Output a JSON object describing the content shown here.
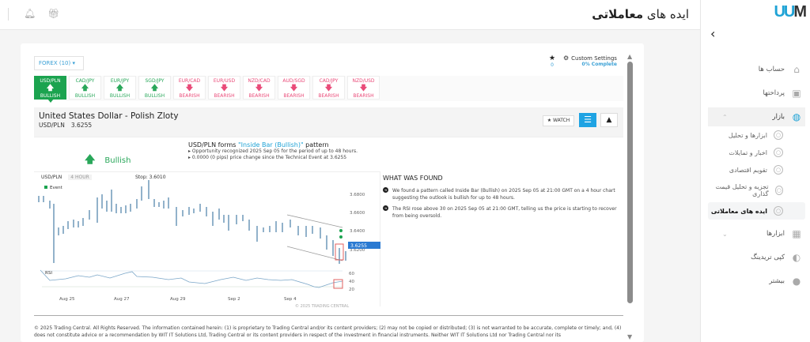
{
  "header": {
    "title_prefix": "ایده های",
    "title_bold": "معاملاتی",
    "icons": [
      "bell-icon",
      "gift-icon"
    ]
  },
  "sidebar": {
    "logo_u": "W",
    "logo_m": "M",
    "items": [
      {
        "label": "حساب ها",
        "icon": "home-icon"
      },
      {
        "label": "پرداختها",
        "icon": "wallet-icon"
      },
      {
        "label": "بازار",
        "icon": "globe-icon",
        "expanded": true
      },
      {
        "label": "ابزارها و تحلیل",
        "sub": true
      },
      {
        "label": "اخبار و تمایلات",
        "sub": true
      },
      {
        "label": "تقویم اقتصادی",
        "sub": true
      },
      {
        "label": "تجزیه و تحلیل قیمت گذاری",
        "sub": true
      },
      {
        "label": "ایده های معاملاتی",
        "sub": true,
        "active": true
      },
      {
        "label": "ابزارها",
        "icon": "grid-icon"
      },
      {
        "label": "کپی تریدینگ",
        "icon": "copy-icon"
      },
      {
        "label": "بیشتر",
        "icon": "more-icon"
      }
    ]
  },
  "toolbar": {
    "forex_label": "FOREX (10) ▾",
    "watch_count": "0",
    "custom_label": "Custom Settings",
    "complete_label": "0% Complete"
  },
  "tabs": [
    {
      "pair": "USD/PLN",
      "dir": "BULLISH",
      "bull": true,
      "selected": true
    },
    {
      "pair": "CAD/JPY",
      "dir": "BULLISH",
      "bull": true
    },
    {
      "pair": "EUR/JPY",
      "dir": "BULLISH",
      "bull": true
    },
    {
      "pair": "SGD/JPY",
      "dir": "BULLISH",
      "bull": true
    },
    {
      "pair": "EUR/CAD",
      "dir": "BEARISH",
      "bull": false
    },
    {
      "pair": "EUR/USD",
      "dir": "BEARISH",
      "bull": false
    },
    {
      "pair": "NZD/CAD",
      "dir": "BEARISH",
      "bull": false
    },
    {
      "pair": "AUD/SGD",
      "dir": "BEARISH",
      "bull": false
    },
    {
      "pair": "CAD/JPY",
      "dir": "BEARISH",
      "bull": false
    },
    {
      "pair": "NZD/USD",
      "dir": "BEARISH",
      "bull": false
    }
  ],
  "instrument": {
    "name": "United States Dollar - Polish Zloty",
    "symbol": "USD/PLN",
    "price": "3.6255",
    "watch_label": "★ WATCH"
  },
  "signal": {
    "label": "Bullish",
    "pattern_prefix": "USD/PLN forms ",
    "pattern_name": "\"Inside Bar (Bullish)\"",
    "pattern_suffix": " pattern",
    "bullets": [
      "Opportunity recognized 2025 Sep 05 for the period of up to 48 hours.",
      "0.0000 (0 pips) price change since the Technical Event at 3.6255"
    ]
  },
  "chart": {
    "symbol": "USD/PLN",
    "timeframe": "4 HOUR",
    "stop": "Stop: 3.6010",
    "event_label": "Event",
    "y_ticks": [
      "3.6800",
      "3.6600",
      "3.6400",
      "3.6200"
    ],
    "current": "3.6255",
    "rsi_label": "RSI",
    "rsi_ticks": [
      "60",
      "40",
      "20"
    ],
    "x_ticks": [
      "Aug 25",
      "Aug 27",
      "Aug 29",
      "Sep 2",
      "Sep 4"
    ],
    "copyright": "© 2025 TRADING CENTRAL"
  },
  "found": {
    "title": "WHAT WAS FOUND",
    "items": [
      "We found a pattern called Inside Bar (Bullish) on 2025 Sep 05 at 21:00 GMT on a 4 hour chart suggesting the outlook is bullish for up to 48 hours.",
      "The RSI rose above 30 on 2025 Sep 05 at 21:00 GMT, telling us the price is starting to recover from being oversold."
    ]
  },
  "disclaimer": "© 2025 Trading Central. All Rights Reserved. The information contained herein: (1) is proprietary to Trading Central and/or its content providers; (2) may not be copied or distributed; (3) is not warranted to be accurate, complete or timely; and, (4) does not constitute advice or a recommendation by WIT IT Solutions Ltd, Trading Central or its content providers in respect of the investment in financial instruments. Neither WIT IT Solutions Ltd nor Trading Central nor its"
}
